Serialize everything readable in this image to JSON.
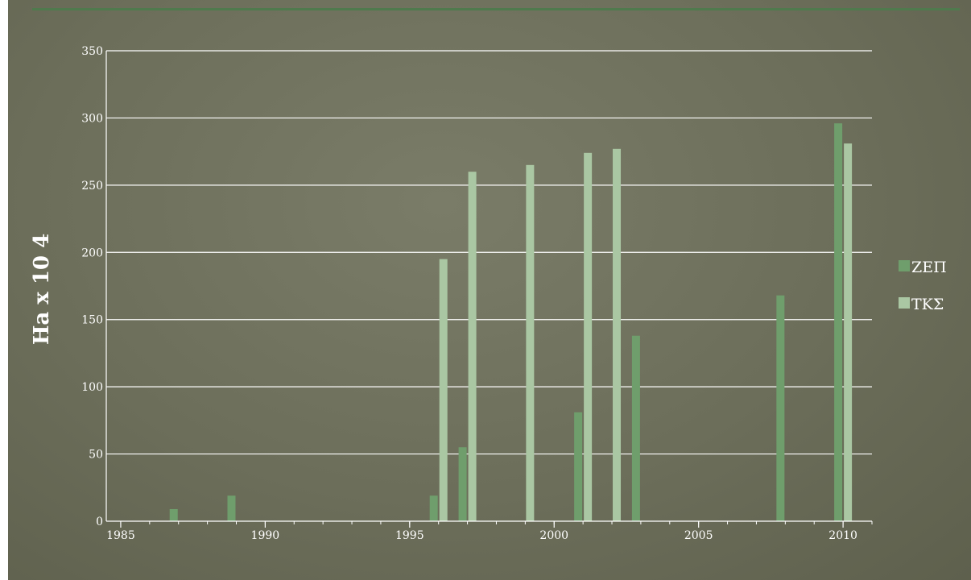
{
  "colors": {
    "series1": "#6f9e6c",
    "series2": "#aac7a3",
    "axis": "#ffffff",
    "grid": "#ffffff"
  },
  "chart_data": {
    "type": "bar",
    "xlabel": "",
    "ylabel": "Ha x 10 4",
    "xlim": [
      1984.5,
      2011
    ],
    "ylim": [
      0,
      350
    ],
    "yticks": [
      0,
      50,
      100,
      150,
      200,
      250,
      300,
      350
    ],
    "xticks": [
      1985,
      1990,
      1995,
      2000,
      2005,
      2010
    ],
    "grid": true,
    "legend_position": "right",
    "series": [
      {
        "name": "ΖΕΠ",
        "x": [
          1987,
          1989,
          1996,
          1997,
          2001,
          2003,
          2008,
          2010
        ],
        "values": [
          9,
          19,
          19,
          55,
          81,
          138,
          168,
          296
        ]
      },
      {
        "name": "ΤΚΣ",
        "x": [
          1996,
          1997,
          1999,
          2001,
          2002,
          2010
        ],
        "values": [
          195,
          260,
          265,
          274,
          277,
          281
        ]
      }
    ]
  }
}
